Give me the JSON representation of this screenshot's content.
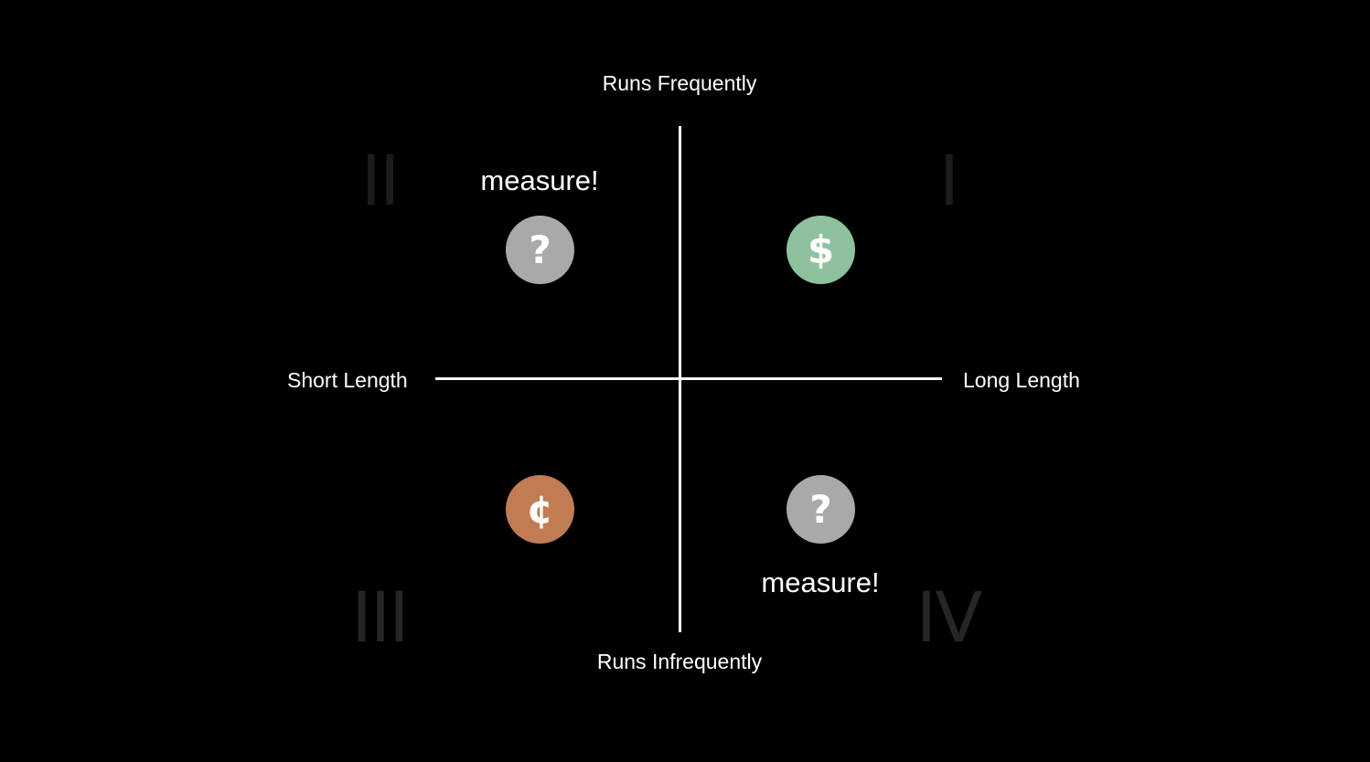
{
  "axes": {
    "top_label": "Runs Frequently",
    "bottom_label": "Runs Infrequently",
    "left_label": "Short Length",
    "right_label": "Long Length"
  },
  "quadrants": {
    "q1": {
      "numeral": "I",
      "symbol": "$",
      "icon": "dollar-icon",
      "color": "#8ec29e",
      "numeral_color": "#1c1c1c"
    },
    "q2": {
      "numeral": "II",
      "symbol": "?",
      "icon": "question-icon",
      "color": "#a9a9a9",
      "note": "measure!",
      "numeral_color": "#1c1c1c"
    },
    "q3": {
      "numeral": "III",
      "symbol": "¢",
      "icon": "cent-icon",
      "color": "#c17c54",
      "numeral_color": "#262626"
    },
    "q4": {
      "numeral": "IV",
      "symbol": "?",
      "icon": "question-icon",
      "color": "#a9a9a9",
      "note": "measure!",
      "numeral_color": "#262626"
    }
  },
  "colors": {
    "background": "#000000",
    "axis": "#ffffff",
    "text": "#ffffff"
  }
}
